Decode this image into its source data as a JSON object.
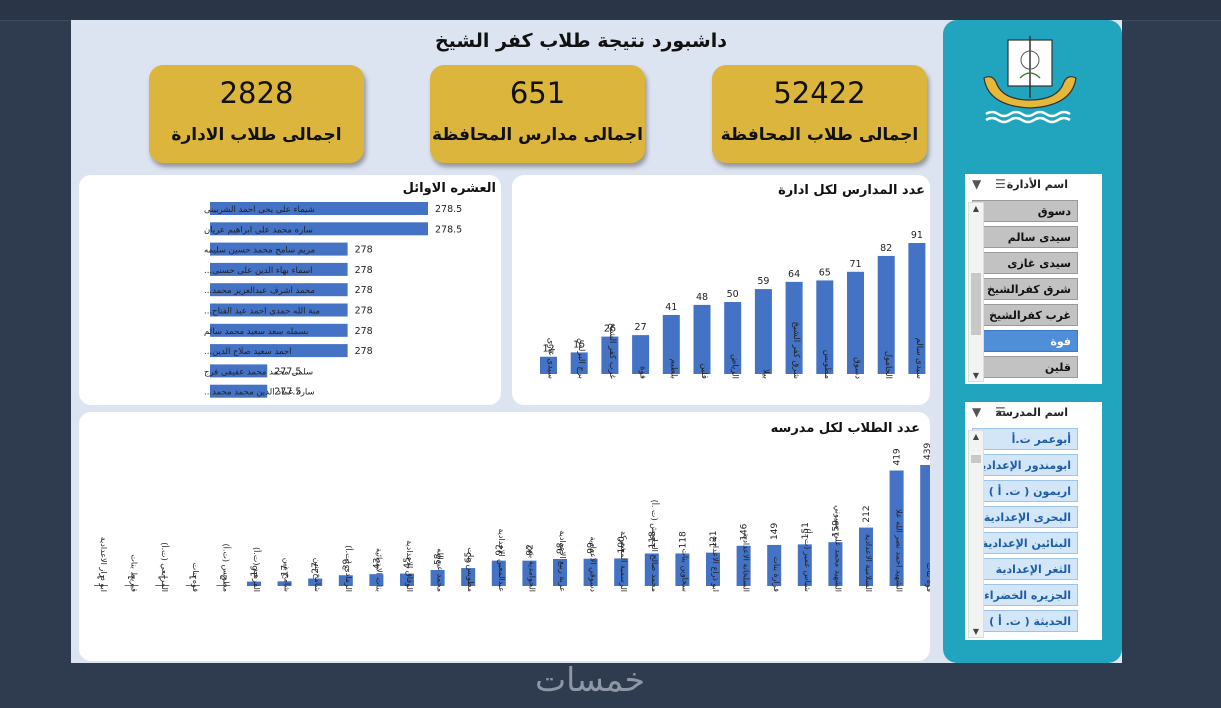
{
  "title": "داشبورد نتيجة طلاب كفر الشيخ",
  "kpis": [
    {
      "value": "2828",
      "label": "اجمالى طلاب الادارة"
    },
    {
      "value": "651",
      "label": "اجمالى مدارس المحافظة"
    },
    {
      "value": "52422",
      "label": "اجمالى طلاب المحافظة"
    }
  ],
  "top10": {
    "title": "العشره الاوائل",
    "names": [
      "شيماء على يحى احمد الشربينى",
      "ساره محمد على ابراهيم عريان",
      "مريم سامح محمد حسين سليمه",
      "اسماء بهاء الدين على حسنى...",
      "محمد اشرف عبدالعزيز محمد...",
      "منة الله حمدى احمد عبد الفتاح...",
      "بسمله سعد سعيد محمد سالم",
      "احمد سعيد صلاح الدين...",
      "سلمى محمد محمد عفيفى فرج",
      "ساره عماد الدين محمد محمد..."
    ],
    "values": [
      278.5,
      278.5,
      278,
      278,
      278,
      278,
      278,
      278,
      277.5,
      277.5
    ],
    "labels": [
      "278.5",
      "278.5",
      "278",
      "278",
      "278",
      "278",
      "278",
      "278",
      "277.5",
      "277.5"
    ]
  },
  "schoolsChart": {
    "title": "عدد المدارس لكل ادارة",
    "categories": [
      "سيدى سالم",
      "الحامول",
      "دسوق",
      "مطوبس",
      "شرق كفر الشيخ",
      "بيلا",
      "الرياض",
      "قلين",
      "بلطيم",
      "فوة",
      "غرب كفر الشيخ",
      "برج البرلس",
      "سيدى غازى"
    ],
    "values": [
      91,
      82,
      71,
      65,
      64,
      59,
      50,
      48,
      41,
      27,
      26,
      15,
      12
    ]
  },
  "studentsChart": {
    "title": "عدد الطلاب لكل مدرسه",
    "categories": [
      "فوه بنات",
      "الشهيد احمد نصر الله علا",
      "السلامية الاعدادية",
      "الشهيد محمد علي بسيوني",
      "شباس عمير (ت .أ)",
      "فزارة بنات",
      "السلخانة الاعدادية",
      "ابو ذراع الاعدادية",
      "سخاوين بنات",
      "محمد صالح الجاويش (ت .أ)",
      "الرسمية المشتركة",
      "دسوقي الاعدادية",
      "عزبة ربيع الاعدادية",
      "الحوامدية بنين",
      "عبدالمعين الاعدادية",
      "مطوبس بنات",
      "محمد عبدالله",
      "الوفاق الاعدادية",
      "بنات الابتدائية",
      "الرمادي (ت.أ)",
      "شامخ بنين",
      "شامخ بنين",
      "الفرهيد (ت.أ)",
      "مطوبس (ت.أ)",
      "فوه بنات",
      "المرابعي (ت.أ)",
      "قبريط بنات",
      "ابو دراز الاعدادية"
    ],
    "values": [
      439,
      419,
      212,
      159,
      151,
      149,
      146,
      121,
      118,
      118,
      100,
      99,
      98,
      92,
      92,
      65,
      58,
      45,
      43,
      39,
      27,
      17,
      16,
      2,
      1,
      1,
      1,
      1
    ]
  },
  "slicer1": {
    "title": "اسم الأدارة",
    "items": [
      "دسوق",
      "سيدى سالم",
      "سيدى غازى",
      "شرق كفرالشيخ",
      "غرب كفرالشيخ",
      "فوة",
      "قلين"
    ],
    "selected": "فوة"
  },
  "slicer2": {
    "title": "اسم المدرسة",
    "items": [
      "أبوعمر ت.أ",
      "ابومندور الإعدادية",
      "اريمون ( ت. أ )",
      "البحرى الإعدادية",
      "البنائين الإعدادية",
      "الثغر الإعدادية",
      "الجزيره الخضراء (...",
      "الحديثة ( ت. أ )"
    ]
  },
  "watermark": "خمسات",
  "colors": {
    "bar": "#4472c4",
    "kpi": "#dcb53c",
    "sidebar": "#21a5bf",
    "selected": "#4e8fd8"
  },
  "chart_data": [
    {
      "type": "bar",
      "title": "العشره الاوائل",
      "orientation": "horizontal",
      "categories": [
        "شيماء على يحى احمد الشربينى",
        "ساره محمد على ابراهيم عريان",
        "مريم سامح محمد حسين سليمه",
        "اسماء بهاء الدين على حسنى...",
        "محمد اشرف عبدالعزيز محمد...",
        "منة الله حمدى احمد عبد الفتاح...",
        "بسمله سعد سعيد محمد سالم",
        "احمد سعيد صلاح الدين...",
        "سلمى محمد محمد عفيفى فرج",
        "ساره عماد الدين محمد محمد..."
      ],
      "values": [
        278.5,
        278.5,
        278,
        278,
        278,
        278,
        278,
        278,
        277.5,
        277.5
      ]
    },
    {
      "type": "bar",
      "title": "عدد المدارس لكل ادارة",
      "categories": [
        "سيدى سالم",
        "الحامول",
        "دسوق",
        "مطوبس",
        "شرق كفر الشيخ",
        "بيلا",
        "الرياض",
        "قلين",
        "بلطيم",
        "فوة",
        "غرب كفر الشيخ",
        "برج البرلس",
        "سيدى غازى"
      ],
      "values": [
        91,
        82,
        71,
        65,
        64,
        59,
        50,
        48,
        41,
        27,
        26,
        15,
        12
      ]
    },
    {
      "type": "bar",
      "title": "عدد الطلاب لكل مدرسه",
      "values": [
        439,
        419,
        212,
        159,
        151,
        149,
        146,
        121,
        118,
        118,
        100,
        99,
        98,
        92,
        92,
        65,
        58,
        45,
        43,
        39,
        27,
        17,
        16,
        2,
        1,
        1,
        1,
        1
      ]
    }
  ]
}
